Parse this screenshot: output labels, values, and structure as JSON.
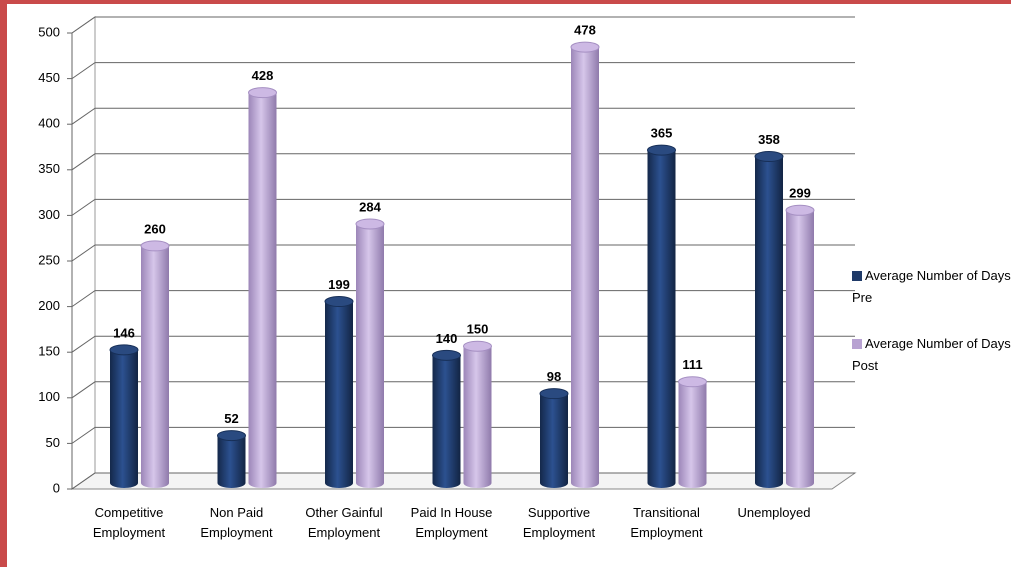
{
  "chart_data": {
    "type": "bar",
    "categories": [
      "Competitive Employment",
      "Non Paid Employment",
      "Other Gainful Employment",
      "Paid In House Employment",
      "Supportive Employment",
      "Transitional Employment",
      "Unemployed"
    ],
    "series": [
      {
        "name": "Average Number of Days Pre",
        "color": "#1f3a68",
        "values": [
          146,
          52,
          199,
          140,
          98,
          365,
          358
        ]
      },
      {
        "name": "Average Number of Days Post",
        "color": "#b8a2d2",
        "values": [
          260,
          428,
          284,
          150,
          478,
          111,
          299
        ]
      }
    ],
    "ylim": [
      0,
      500
    ],
    "yticks": [
      0,
      50,
      100,
      150,
      200,
      250,
      300,
      350,
      400,
      450,
      500
    ],
    "grid": true,
    "legend": "right"
  }
}
